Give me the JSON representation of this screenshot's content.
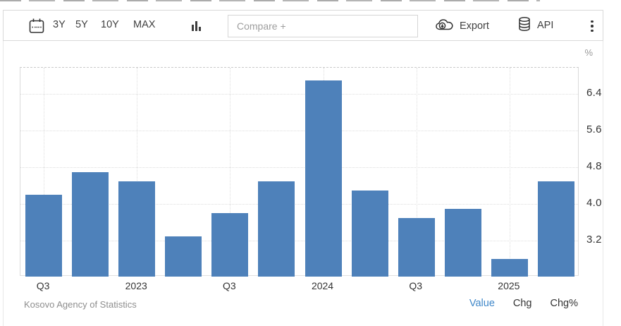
{
  "toolbar": {
    "calendar_icon": "calendar-icon",
    "ranges": [
      "3Y",
      "5Y",
      "10Y",
      "MAX"
    ],
    "chart_type_icon": "column-chart-icon",
    "compare_placeholder": "Compare +",
    "export_label": "Export",
    "export_icon": "cloud-download-icon",
    "api_label": "API",
    "api_icon": "database-icon",
    "more_menu_icon": "kebab-menu-icon"
  },
  "chart": {
    "unit_label": "%"
  },
  "chart_data": {
    "type": "bar",
    "title": "",
    "xlabel": "",
    "ylabel": "%",
    "bar_color": "#4e81ba",
    "values": [
      4.2,
      4.7,
      4.5,
      3.3,
      3.8,
      4.5,
      6.7,
      4.3,
      3.7,
      3.9,
      2.8,
      4.5
    ],
    "x_ticks": [
      {
        "index": 0,
        "label": "Q3"
      },
      {
        "index": 2,
        "label": "2023"
      },
      {
        "index": 4,
        "label": "Q3"
      },
      {
        "index": 6,
        "label": "2024"
      },
      {
        "index": 8,
        "label": "Q3"
      },
      {
        "index": 10,
        "label": "2025"
      }
    ],
    "y_ticks": [
      6.4,
      5.6,
      4.8,
      4.0,
      3.2
    ],
    "ylim": [
      2.42,
      6.97
    ],
    "grid": true,
    "legend": false
  },
  "footer": {
    "source": "Kosovo Agency of Statistics",
    "modes": [
      "Value",
      "Chg",
      "Chg%"
    ],
    "active_mode": "Value",
    "active_color": "#3f87c9"
  }
}
